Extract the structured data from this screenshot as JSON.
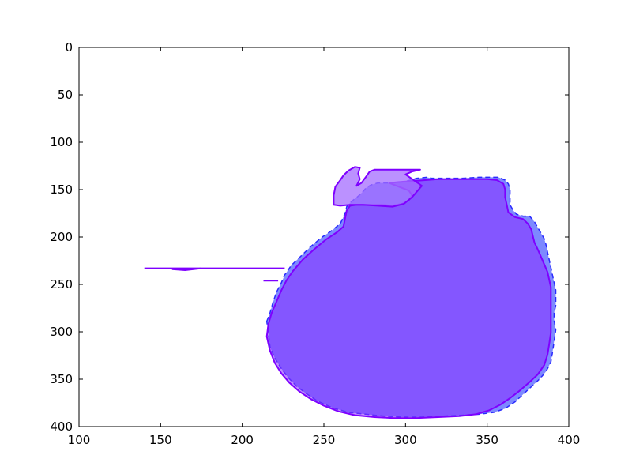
{
  "chart_data": {
    "type": "area",
    "title": "",
    "xlabel": "",
    "ylabel": "",
    "xlim": [
      100,
      400
    ],
    "ylim": [
      400,
      0
    ],
    "y_inverted": true,
    "grid": false,
    "x_ticks": [
      "100",
      "150",
      "200",
      "250",
      "300",
      "350",
      "400"
    ],
    "y_ticks": [
      "0",
      "50",
      "100",
      "150",
      "200",
      "250",
      "300",
      "350",
      "400"
    ],
    "series": [
      {
        "style": "dashed-outline-fill",
        "fill": "#6f7cff",
        "stroke": "#2a2aff",
        "points": [
          [
            215,
            289
          ],
          [
            217,
            280
          ],
          [
            219,
            268
          ],
          [
            221,
            258
          ],
          [
            224,
            248
          ],
          [
            226,
            240
          ],
          [
            230,
            230
          ],
          [
            236,
            220
          ],
          [
            242,
            210
          ],
          [
            249,
            200
          ],
          [
            255,
            193
          ],
          [
            260,
            186
          ],
          [
            263,
            175
          ],
          [
            264,
            168
          ],
          [
            266,
            164
          ],
          [
            268,
            161
          ],
          [
            271,
            157
          ],
          [
            274,
            152
          ],
          [
            276,
            148
          ],
          [
            279,
            145
          ],
          [
            283,
            143
          ],
          [
            292,
            143
          ],
          [
            298,
            142
          ],
          [
            303,
            140
          ],
          [
            307,
            138
          ],
          [
            313,
            137
          ],
          [
            316,
            138
          ],
          [
            326,
            138
          ],
          [
            335,
            138
          ],
          [
            345,
            137
          ],
          [
            352,
            137
          ],
          [
            357,
            137
          ],
          [
            361,
            140
          ],
          [
            363,
            144
          ],
          [
            364,
            150
          ],
          [
            364,
            158
          ],
          [
            364,
            166
          ],
          [
            366,
            172
          ],
          [
            368,
            176
          ],
          [
            372,
            178
          ],
          [
            376,
            178
          ],
          [
            379,
            184
          ],
          [
            381,
            190
          ],
          [
            383,
            196
          ],
          [
            385,
            202
          ],
          [
            386,
            208
          ],
          [
            387,
            216
          ],
          [
            388,
            224
          ],
          [
            389,
            232
          ],
          [
            390,
            240
          ],
          [
            391,
            248
          ],
          [
            392,
            256
          ],
          [
            392,
            264
          ],
          [
            392,
            272
          ],
          [
            391,
            280
          ],
          [
            391,
            288
          ],
          [
            392,
            298
          ],
          [
            391,
            310
          ],
          [
            390,
            322
          ],
          [
            389,
            332
          ],
          [
            386,
            342
          ],
          [
            382,
            350
          ],
          [
            377,
            358
          ],
          [
            372,
            366
          ],
          [
            367,
            374
          ],
          [
            361,
            381
          ],
          [
            354,
            385
          ],
          [
            345,
            387
          ],
          [
            335,
            388
          ],
          [
            322,
            389
          ],
          [
            310,
            390
          ],
          [
            298,
            390
          ],
          [
            287,
            389
          ],
          [
            276,
            387
          ],
          [
            265,
            385
          ],
          [
            255,
            380
          ],
          [
            246,
            373
          ],
          [
            239,
            365
          ],
          [
            233,
            357
          ],
          [
            228,
            348
          ],
          [
            224,
            339
          ],
          [
            220,
            328
          ],
          [
            217,
            316
          ],
          [
            216,
            302
          ]
        ]
      },
      {
        "style": "solid-outline-fill",
        "fill": "#8b2cff",
        "stroke": "#7e00ff",
        "points": [
          [
            215,
            305
          ],
          [
            216,
            292
          ],
          [
            218,
            280
          ],
          [
            221,
            268
          ],
          [
            224,
            256
          ],
          [
            227,
            246
          ],
          [
            231,
            236
          ],
          [
            237,
            224
          ],
          [
            244,
            213
          ],
          [
            251,
            203
          ],
          [
            258,
            195
          ],
          [
            262,
            189
          ],
          [
            263,
            180
          ],
          [
            264,
            172
          ],
          [
            266,
            167
          ],
          [
            270,
            166
          ],
          [
            277,
            166
          ],
          [
            285,
            166
          ],
          [
            292,
            167
          ],
          [
            298,
            165
          ],
          [
            302,
            161
          ],
          [
            304,
            156
          ],
          [
            302,
            151
          ],
          [
            296,
            147
          ],
          [
            290,
            143
          ],
          [
            296,
            142
          ],
          [
            304,
            141
          ],
          [
            312,
            140
          ],
          [
            320,
            139
          ],
          [
            330,
            139
          ],
          [
            341,
            139
          ],
          [
            350,
            139
          ],
          [
            356,
            140
          ],
          [
            360,
            144
          ],
          [
            361,
            150
          ],
          [
            361,
            158
          ],
          [
            362,
            166
          ],
          [
            363,
            174
          ],
          [
            367,
            179
          ],
          [
            372,
            181
          ],
          [
            375,
            186
          ],
          [
            377,
            192
          ],
          [
            378,
            199
          ],
          [
            379,
            206
          ],
          [
            381,
            213
          ],
          [
            383,
            221
          ],
          [
            385,
            229
          ],
          [
            387,
            237
          ],
          [
            388,
            245
          ],
          [
            389,
            253
          ],
          [
            389,
            261
          ],
          [
            389,
            270
          ],
          [
            389,
            280
          ],
          [
            389,
            291
          ],
          [
            389,
            301
          ],
          [
            388,
            313
          ],
          [
            387,
            324
          ],
          [
            385,
            335
          ],
          [
            381,
            345
          ],
          [
            376,
            353
          ],
          [
            370,
            362
          ],
          [
            364,
            370
          ],
          [
            358,
            377
          ],
          [
            351,
            383
          ],
          [
            343,
            387
          ],
          [
            333,
            389
          ],
          [
            320,
            390
          ],
          [
            306,
            391
          ],
          [
            293,
            391
          ],
          [
            281,
            390
          ],
          [
            269,
            388
          ],
          [
            259,
            384
          ],
          [
            250,
            378
          ],
          [
            242,
            371
          ],
          [
            235,
            363
          ],
          [
            229,
            354
          ],
          [
            224,
            344
          ],
          [
            220,
            333
          ],
          [
            217,
            320
          ]
        ]
      },
      {
        "style": "protrusion-fill",
        "fill": "#a46cff",
        "stroke": "#7e00ff",
        "points": [
          [
            256,
            166
          ],
          [
            256,
            156
          ],
          [
            257,
            147
          ],
          [
            260,
            140
          ],
          [
            262,
            135
          ],
          [
            265,
            130
          ],
          [
            267,
            128
          ],
          [
            269,
            126
          ],
          [
            272,
            127
          ],
          [
            271,
            133
          ],
          [
            272,
            139
          ],
          [
            270,
            146
          ],
          [
            273,
            143
          ],
          [
            276,
            136
          ],
          [
            278,
            131
          ],
          [
            281,
            129
          ],
          [
            289,
            129
          ],
          [
            296,
            129
          ],
          [
            303,
            129
          ],
          [
            309,
            129
          ],
          [
            304,
            131
          ],
          [
            300,
            134
          ],
          [
            305,
            140
          ],
          [
            310,
            146
          ],
          [
            304,
            158
          ],
          [
            299,
            165
          ],
          [
            292,
            168
          ],
          [
            283,
            167
          ],
          [
            274,
            166
          ],
          [
            266,
            166
          ],
          [
            260,
            167
          ]
        ]
      },
      {
        "style": "line",
        "stroke": "#7e00ff",
        "points": [
          [
            140,
            233
          ],
          [
            158,
            233
          ],
          [
            172,
            233
          ],
          [
            190,
            233
          ],
          [
            205,
            233
          ],
          [
            220,
            233
          ],
          [
            226,
            233
          ]
        ]
      },
      {
        "style": "line",
        "stroke": "#7e00ff",
        "points": [
          [
            157,
            234
          ],
          [
            165,
            235
          ],
          [
            175,
            233
          ]
        ]
      },
      {
        "style": "line",
        "stroke": "#7e00ff",
        "points": [
          [
            213,
            246
          ],
          [
            222,
            246
          ]
        ]
      }
    ]
  }
}
